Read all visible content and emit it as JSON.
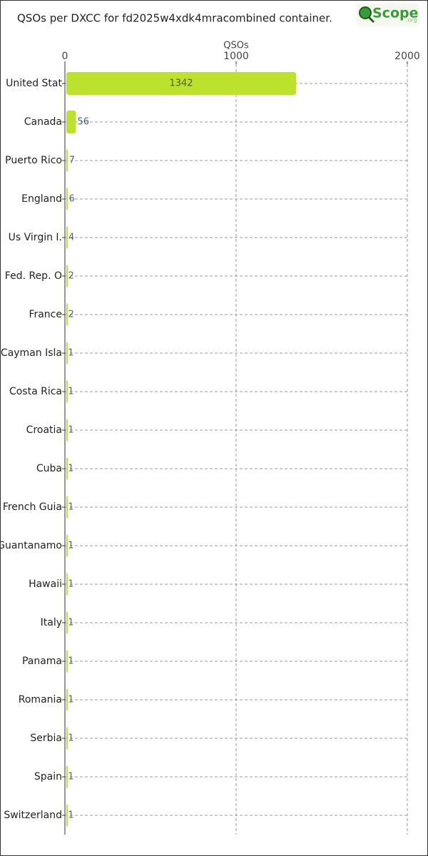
{
  "chart_data": {
    "type": "hbar",
    "title": "QSOs per DXCC for fd2025w4xdk4mracombined container.",
    "logo_text": "Scope",
    "logo_suffix": ".org",
    "x_label": "QSOs",
    "categories": [
      "United Stat",
      "Canada",
      "Puerto Rico",
      "England",
      "Us Virgin I.",
      "Fed. Rep. O",
      "France",
      "Cayman Isla",
      "Costa Rica",
      "Croatia",
      "Cuba",
      "French Guia",
      "Guantanamo",
      "Hawaii",
      "Italy",
      "Panama",
      "Romania",
      "Serbia",
      "Spain",
      "Switzerland"
    ],
    "values": [
      1342,
      56,
      7,
      6,
      4,
      2,
      2,
      1,
      1,
      1,
      1,
      1,
      1,
      1,
      1,
      1,
      1,
      1,
      1,
      1
    ],
    "color": "#bde22e",
    "xlim": [
      0,
      2000
    ],
    "xticks": [
      0,
      1000,
      2000
    ],
    "grid": true
  }
}
